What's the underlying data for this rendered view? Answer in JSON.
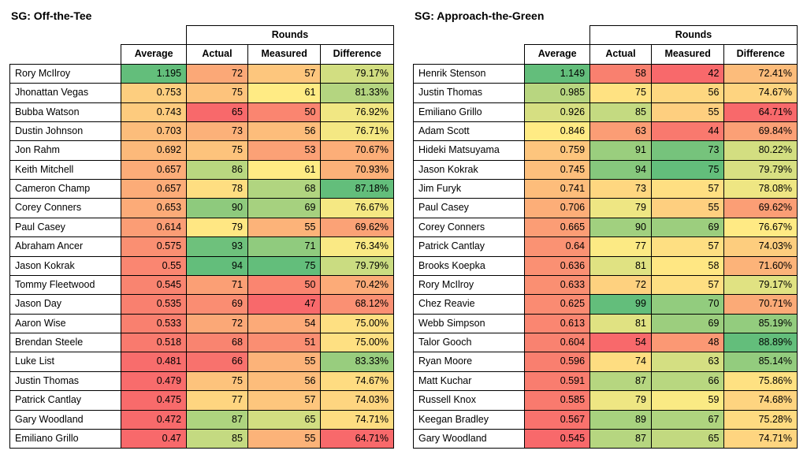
{
  "font_family": "Arial",
  "panel_title_fontsize_pt": 14,
  "cell_fontsize_pt": 12.5,
  "border_color": "#000000",
  "background_color": "#ffffff",
  "heatmap_palette_note": "red-yellow-green gradient per column, low=red high=green (except Difference where higher=green)",
  "panels": [
    {
      "title": "SG: Off-the-Tee",
      "header_group": "Rounds",
      "columns": [
        "Average",
        "Actual",
        "Measured",
        "Difference"
      ],
      "decimals": {
        "Average": 3,
        "Actual": 0,
        "Measured": 0,
        "Difference_pct": 2
      },
      "rows": [
        {
          "name": "Rory McIlroy",
          "avg": 1.195,
          "actual": 72,
          "measured": 57,
          "diff_pct": 79.17
        },
        {
          "name": "Jhonattan Vegas",
          "avg": 0.753,
          "actual": 75,
          "measured": 61,
          "diff_pct": 81.33
        },
        {
          "name": "Bubba Watson",
          "avg": 0.743,
          "actual": 65,
          "measured": 50,
          "diff_pct": 76.92
        },
        {
          "name": "Dustin Johnson",
          "avg": 0.703,
          "actual": 73,
          "measured": 56,
          "diff_pct": 76.71
        },
        {
          "name": "Jon Rahm",
          "avg": 0.692,
          "actual": 75,
          "measured": 53,
          "diff_pct": 70.67
        },
        {
          "name": "Keith Mitchell",
          "avg": 0.657,
          "actual": 86,
          "measured": 61,
          "diff_pct": 70.93
        },
        {
          "name": "Cameron Champ",
          "avg": 0.657,
          "actual": 78,
          "measured": 68,
          "diff_pct": 87.18
        },
        {
          "name": "Corey Conners",
          "avg": 0.653,
          "actual": 90,
          "measured": 69,
          "diff_pct": 76.67
        },
        {
          "name": "Paul Casey",
          "avg": 0.614,
          "actual": 79,
          "measured": 55,
          "diff_pct": 69.62
        },
        {
          "name": "Abraham Ancer",
          "avg": 0.575,
          "actual": 93,
          "measured": 71,
          "diff_pct": 76.34
        },
        {
          "name": "Jason Kokrak",
          "avg": 0.55,
          "actual": 94,
          "measured": 75,
          "diff_pct": 79.79
        },
        {
          "name": "Tommy Fleetwood",
          "avg": 0.545,
          "actual": 71,
          "measured": 50,
          "diff_pct": 70.42
        },
        {
          "name": "Jason Day",
          "avg": 0.535,
          "actual": 69,
          "measured": 47,
          "diff_pct": 68.12
        },
        {
          "name": "Aaron Wise",
          "avg": 0.533,
          "actual": 72,
          "measured": 54,
          "diff_pct": 75.0
        },
        {
          "name": "Brendan Steele",
          "avg": 0.518,
          "actual": 68,
          "measured": 51,
          "diff_pct": 75.0
        },
        {
          "name": "Luke List",
          "avg": 0.481,
          "actual": 66,
          "measured": 55,
          "diff_pct": 83.33
        },
        {
          "name": "Justin Thomas",
          "avg": 0.479,
          "actual": 75,
          "measured": 56,
          "diff_pct": 74.67
        },
        {
          "name": "Patrick Cantlay",
          "avg": 0.475,
          "actual": 77,
          "measured": 57,
          "diff_pct": 74.03
        },
        {
          "name": "Gary Woodland",
          "avg": 0.472,
          "actual": 87,
          "measured": 65,
          "diff_pct": 74.71
        },
        {
          "name": "Emiliano Grillo",
          "avg": 0.47,
          "actual": 85,
          "measured": 55,
          "diff_pct": 64.71
        }
      ]
    },
    {
      "title": "SG: Approach-the-Green",
      "header_group": "Rounds",
      "columns": [
        "Average",
        "Actual",
        "Measured",
        "Difference"
      ],
      "decimals": {
        "Average": 3,
        "Actual": 0,
        "Measured": 0,
        "Difference_pct": 2
      },
      "rows": [
        {
          "name": "Henrik Stenson",
          "avg": 1.149,
          "actual": 58,
          "measured": 42,
          "diff_pct": 72.41
        },
        {
          "name": "Justin Thomas",
          "avg": 0.985,
          "actual": 75,
          "measured": 56,
          "diff_pct": 74.67
        },
        {
          "name": "Emiliano Grillo",
          "avg": 0.926,
          "actual": 85,
          "measured": 55,
          "diff_pct": 64.71
        },
        {
          "name": "Adam Scott",
          "avg": 0.846,
          "actual": 63,
          "measured": 44,
          "diff_pct": 69.84
        },
        {
          "name": "Hideki Matsuyama",
          "avg": 0.759,
          "actual": 91,
          "measured": 73,
          "diff_pct": 80.22
        },
        {
          "name": "Jason Kokrak",
          "avg": 0.745,
          "actual": 94,
          "measured": 75,
          "diff_pct": 79.79
        },
        {
          "name": "Jim Furyk",
          "avg": 0.741,
          "actual": 73,
          "measured": 57,
          "diff_pct": 78.08
        },
        {
          "name": "Paul Casey",
          "avg": 0.706,
          "actual": 79,
          "measured": 55,
          "diff_pct": 69.62
        },
        {
          "name": "Corey Conners",
          "avg": 0.665,
          "actual": 90,
          "measured": 69,
          "diff_pct": 76.67
        },
        {
          "name": "Patrick Cantlay",
          "avg": 0.64,
          "actual": 77,
          "measured": 57,
          "diff_pct": 74.03
        },
        {
          "name": "Brooks Koepka",
          "avg": 0.636,
          "actual": 81,
          "measured": 58,
          "diff_pct": 71.6
        },
        {
          "name": "Rory McIlroy",
          "avg": 0.633,
          "actual": 72,
          "measured": 57,
          "diff_pct": 79.17
        },
        {
          "name": "Chez Reavie",
          "avg": 0.625,
          "actual": 99,
          "measured": 70,
          "diff_pct": 70.71
        },
        {
          "name": "Webb Simpson",
          "avg": 0.613,
          "actual": 81,
          "measured": 69,
          "diff_pct": 85.19
        },
        {
          "name": "Talor Gooch",
          "avg": 0.604,
          "actual": 54,
          "measured": 48,
          "diff_pct": 88.89
        },
        {
          "name": "Ryan Moore",
          "avg": 0.596,
          "actual": 74,
          "measured": 63,
          "diff_pct": 85.14
        },
        {
          "name": "Matt Kuchar",
          "avg": 0.591,
          "actual": 87,
          "measured": 66,
          "diff_pct": 75.86
        },
        {
          "name": "Russell Knox",
          "avg": 0.585,
          "actual": 79,
          "measured": 59,
          "diff_pct": 74.68
        },
        {
          "name": "Keegan Bradley",
          "avg": 0.567,
          "actual": 89,
          "measured": 67,
          "diff_pct": 75.28
        },
        {
          "name": "Gary Woodland",
          "avg": 0.545,
          "actual": 87,
          "measured": 65,
          "diff_pct": 74.71
        }
      ]
    }
  ],
  "heatmap_colors": {
    "high": "#63be7b",
    "mid": "#ffeb84",
    "low": "#f8696b"
  }
}
